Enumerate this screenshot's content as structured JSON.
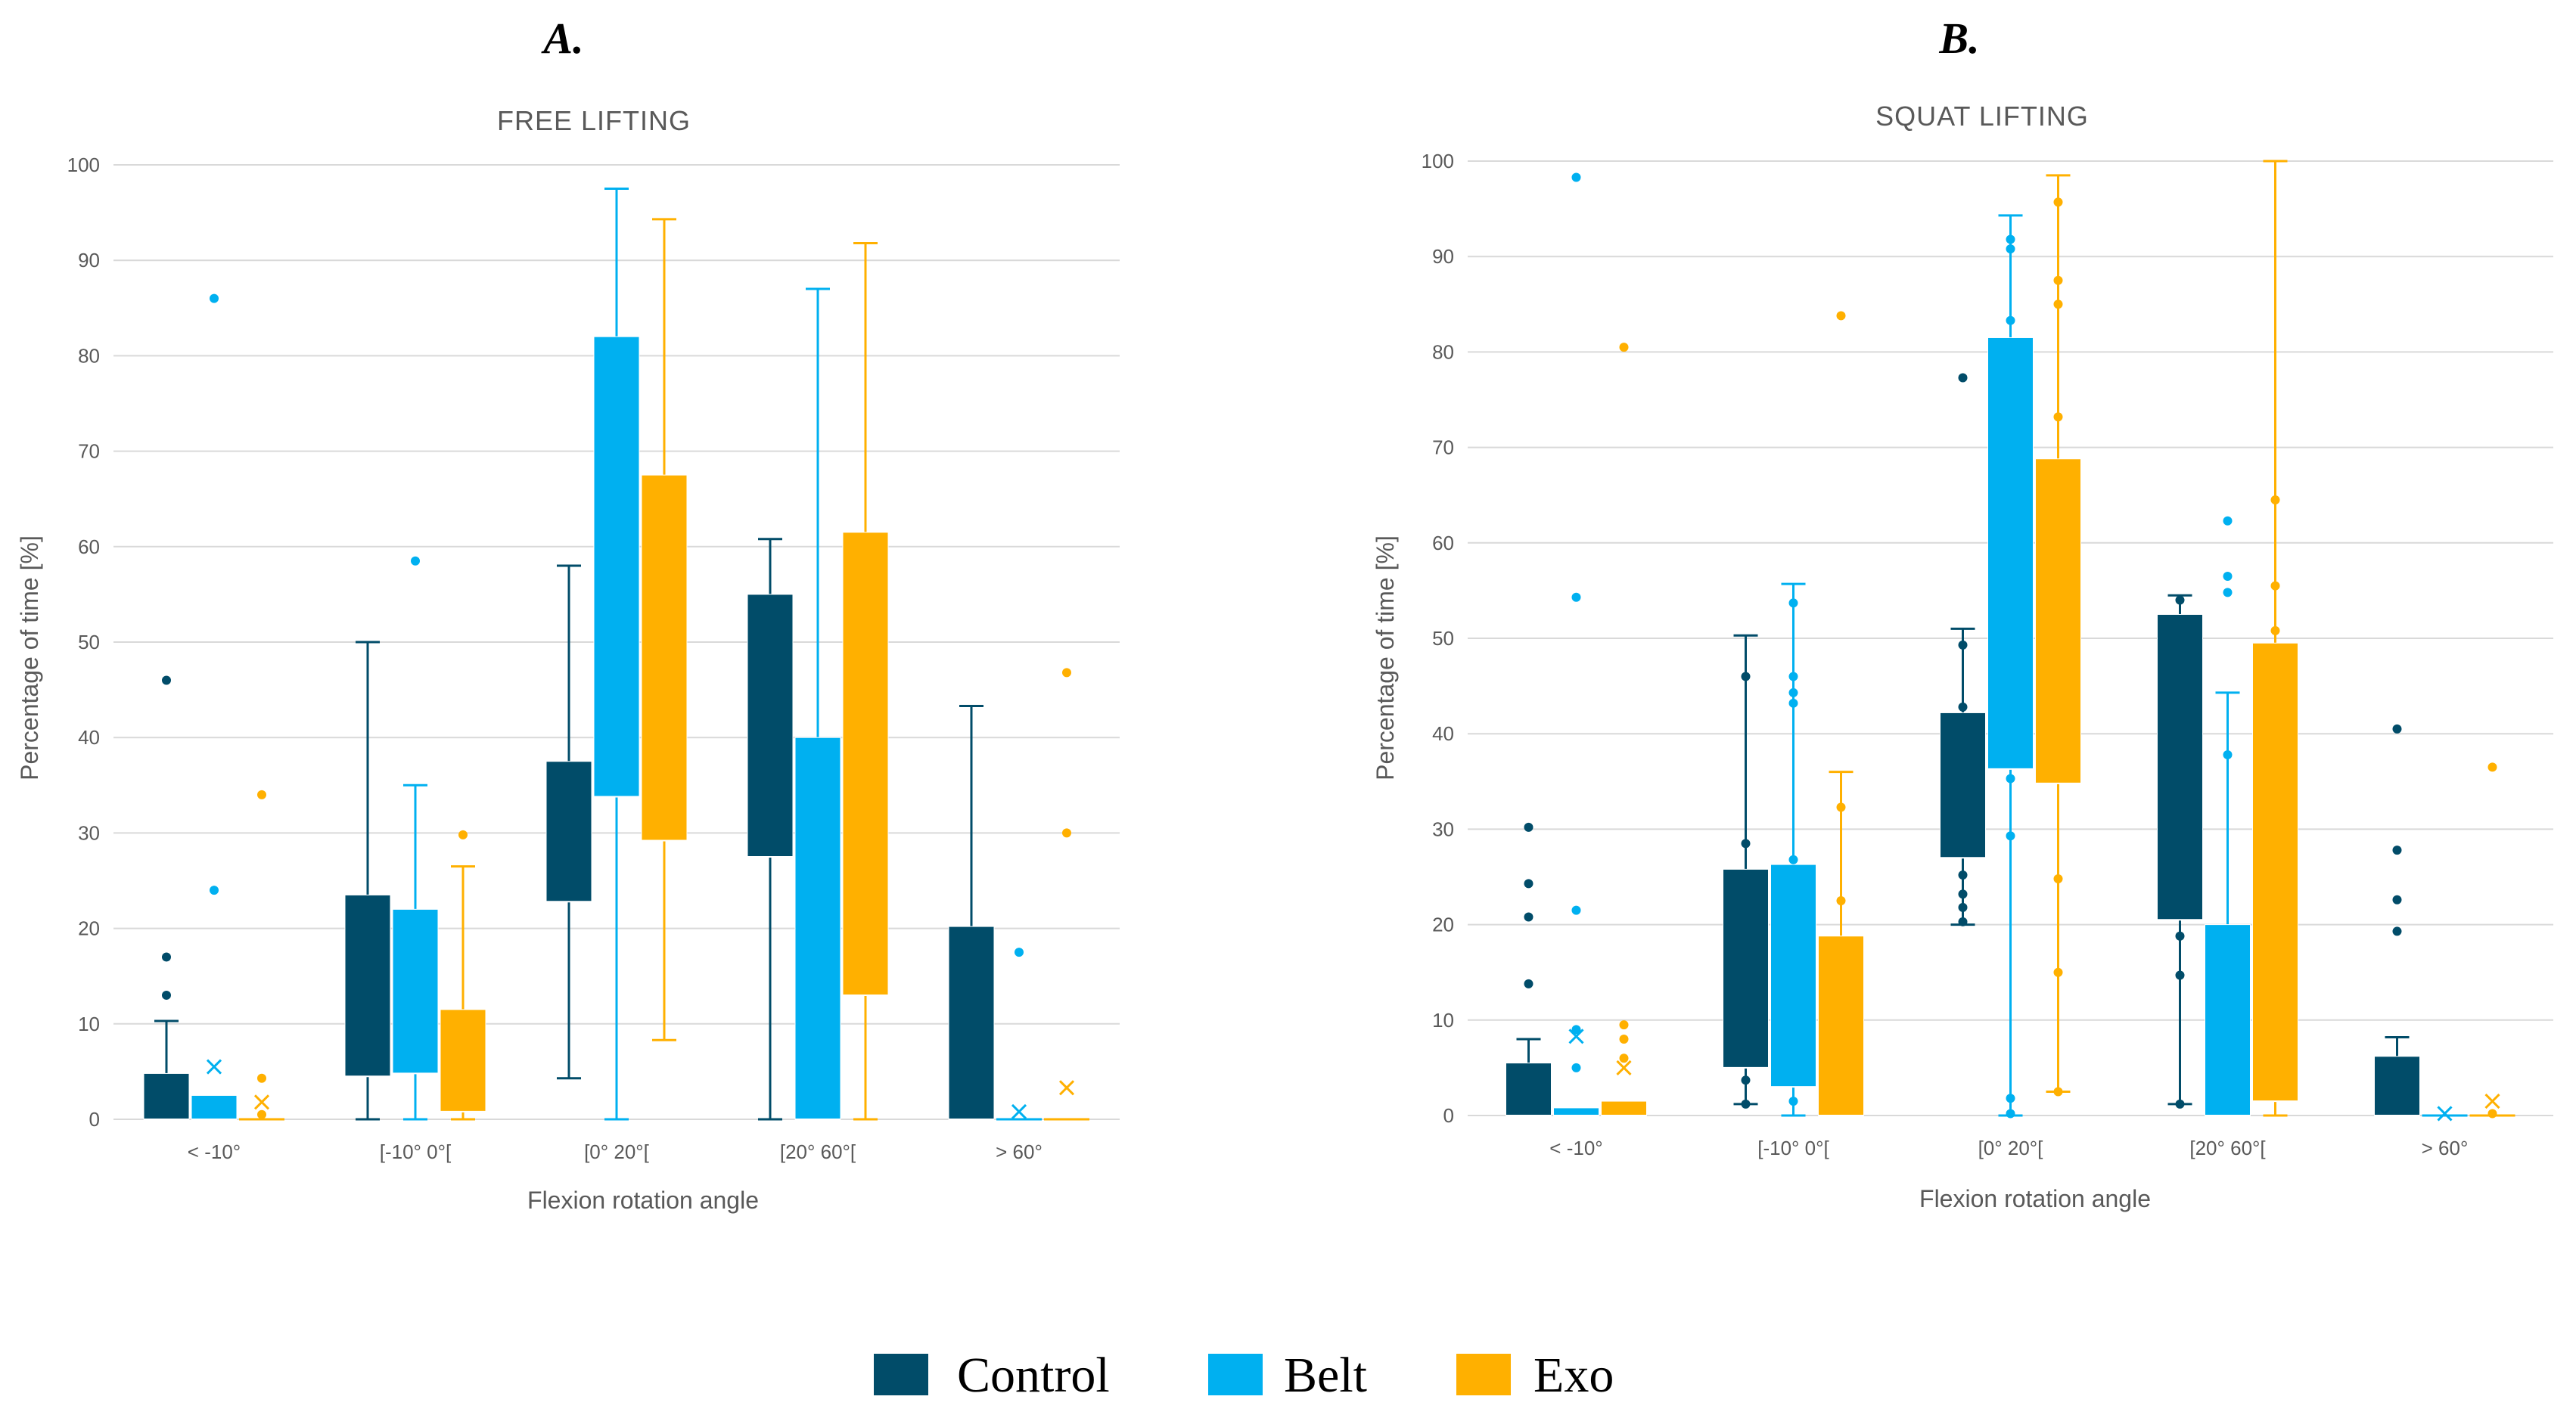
{
  "colors": {
    "Control": "#014c69",
    "Belt": "#00b0f0",
    "Exo": "#ffb000"
  },
  "legend": [
    "Control",
    "Belt",
    "Exo"
  ],
  "chart_data": [
    {
      "type": "boxplot",
      "panel": "A.",
      "title": "FREE LIFTING",
      "xlabel": "Flexion rotation angle",
      "ylabel": "Percentage of time [%]",
      "ylim": [
        0,
        100
      ],
      "yticks": [
        0,
        10,
        20,
        30,
        40,
        50,
        60,
        70,
        80,
        90,
        100
      ],
      "categories": [
        "< -10°",
        "[-10° 0°[",
        "[0° 20°[",
        "[20° 60°[",
        "> 60°"
      ],
      "series": [
        {
          "name": "Control",
          "boxes": [
            {
              "min": 0,
              "q1": 0,
              "median": 0,
              "q3": 4.8,
              "max": 10.3,
              "mean": null,
              "outliers": [
                13,
                17,
                46
              ]
            },
            {
              "min": 0,
              "q1": 4.5,
              "median": 4.5,
              "q3": 23.5,
              "max": 50,
              "mean": null,
              "outliers": []
            },
            {
              "min": 4.3,
              "q1": 22.8,
              "median": 22.8,
              "q3": 37.5,
              "max": 58,
              "mean": null,
              "outliers": []
            },
            {
              "min": 0,
              "q1": 27.5,
              "median": 27.5,
              "q3": 55,
              "max": 60.8,
              "mean": null,
              "outliers": []
            },
            {
              "min": 0,
              "q1": 0,
              "median": 0,
              "q3": 20.2,
              "max": 43.3,
              "mean": null,
              "outliers": []
            }
          ]
        },
        {
          "name": "Belt",
          "boxes": [
            {
              "min": 0,
              "q1": 0,
              "median": 0,
              "q3": 2.5,
              "max": 2.5,
              "mean": 5.5,
              "outliers": [
                24,
                86
              ]
            },
            {
              "min": 0,
              "q1": 4.8,
              "median": 4.8,
              "q3": 22,
              "max": 35,
              "mean": null,
              "outliers": [
                58.5
              ]
            },
            {
              "min": 0,
              "q1": 33.8,
              "median": 33.8,
              "q3": 82,
              "max": 97.5,
              "mean": null,
              "outliers": []
            },
            {
              "min": 0,
              "q1": 0,
              "median": 0,
              "q3": 40,
              "max": 87,
              "mean": null,
              "outliers": []
            },
            {
              "min": 0,
              "q1": 0,
              "median": 0,
              "q3": 0,
              "max": 0,
              "mean": 0.8,
              "outliers": [
                17.5
              ]
            }
          ]
        },
        {
          "name": "Exo",
          "boxes": [
            {
              "min": 0,
              "q1": 0,
              "median": 0,
              "q3": 0,
              "max": 0,
              "mean": 1.8,
              "outliers": [
                0.5,
                4.3,
                34
              ]
            },
            {
              "min": 0,
              "q1": 0.8,
              "median": 0.8,
              "q3": 11.5,
              "max": 26.5,
              "mean": null,
              "outliers": [
                29.8
              ]
            },
            {
              "min": 8.3,
              "q1": 29.2,
              "median": 29.2,
              "q3": 67.5,
              "max": 94.3,
              "mean": null,
              "outliers": []
            },
            {
              "min": 0,
              "q1": 13,
              "median": 13,
              "q3": 61.5,
              "max": 91.8,
              "mean": null,
              "outliers": []
            },
            {
              "min": 0,
              "q1": 0,
              "median": 0,
              "q3": 0,
              "max": 0,
              "mean": 3.3,
              "outliers": [
                30,
                46.8
              ]
            }
          ]
        }
      ]
    },
    {
      "type": "boxplot",
      "panel": "B.",
      "title": "SQUAT LIFTING",
      "xlabel": "Flexion rotation angle",
      "ylabel": "Percentage of time [%]",
      "ylim": [
        0,
        100
      ],
      "yticks": [
        0,
        10,
        20,
        30,
        40,
        50,
        60,
        70,
        80,
        90,
        100
      ],
      "categories": [
        "< -10°",
        "[-10° 0°[",
        "[0° 20°[",
        "[20° 60°[",
        "> 60°"
      ],
      "series": [
        {
          "name": "Control",
          "boxes": [
            {
              "min": 0,
              "q1": 0,
              "median": 0,
              "q3": 5.5,
              "max": 8,
              "mean": null,
              "outliers": [
                13.8,
                20.8,
                24.3,
                30.2
              ]
            },
            {
              "min": 1.2,
              "q1": 5,
              "median": 5,
              "q3": 25.8,
              "max": 50.3,
              "mean": null,
              "outliers": [
                1.2,
                3.7,
                28.5,
                46
              ]
            },
            {
              "min": 20,
              "q1": 27,
              "median": 27,
              "q3": 42.2,
              "max": 51,
              "mean": null,
              "outliers": [
                20.3,
                21.8,
                23.2,
                25.2,
                42.8,
                49.3,
                77.3
              ]
            },
            {
              "min": 1.2,
              "q1": 20.5,
              "median": 20.5,
              "q3": 52.5,
              "max": 54.5,
              "mean": null,
              "outliers": [
                1.2,
                14.7,
                18.8,
                54
              ]
            },
            {
              "min": 0,
              "q1": 0,
              "median": 0,
              "q3": 6.2,
              "max": 8.2,
              "mean": null,
              "outliers": [
                19.3,
                22.6,
                27.8,
                40.5
              ]
            }
          ]
        },
        {
          "name": "Belt",
          "boxes": [
            {
              "min": 0,
              "q1": 0,
              "median": 0,
              "q3": 0.8,
              "max": 0.8,
              "mean": 8.3,
              "outliers": [
                5,
                9,
                21.5,
                54.3,
                98.3
              ]
            },
            {
              "min": 0,
              "q1": 3,
              "median": 3,
              "q3": 26.3,
              "max": 55.7,
              "mean": null,
              "outliers": [
                1.5,
                26.8,
                43.2,
                44.3,
                46,
                53.7
              ]
            },
            {
              "min": 0,
              "q1": 36.3,
              "median": 36.3,
              "q3": 81.5,
              "max": 94.3,
              "mean": null,
              "outliers": [
                0.2,
                1.8,
                29.3,
                35.3,
                83.3,
                90.8,
                91.8
              ]
            },
            {
              "min": 0,
              "q1": 0,
              "median": 0,
              "q3": 20,
              "max": 44.3,
              "mean": null,
              "outliers": [
                19.3,
                37.8,
                54.8,
                56.5,
                62.3
              ]
            },
            {
              "min": 0,
              "q1": 0,
              "median": 0,
              "q3": 0,
              "max": 0,
              "mean": 0.2,
              "outliers": []
            }
          ]
        },
        {
          "name": "Exo",
          "boxes": [
            {
              "min": 0,
              "q1": 0,
              "median": 0,
              "q3": 1.5,
              "max": 1.5,
              "mean": 5,
              "outliers": [
                6,
                8,
                9.5,
                80.5
              ]
            },
            {
              "min": 0,
              "q1": 0,
              "median": 0,
              "q3": 18.8,
              "max": 36,
              "mean": null,
              "outliers": [
                22.5,
                32.3,
                83.8
              ]
            },
            {
              "min": 2.5,
              "q1": 34.8,
              "median": 34.8,
              "q3": 68.8,
              "max": 98.5,
              "mean": null,
              "outliers": [
                2.5,
                15,
                24.8,
                73.2,
                85,
                87.5,
                95.7
              ]
            },
            {
              "min": 0,
              "q1": 1.5,
              "median": 1.5,
              "q3": 49.5,
              "max": 100,
              "mean": null,
              "outliers": [
                50.8,
                55.5,
                64.5
              ]
            },
            {
              "min": 0,
              "q1": 0,
              "median": 0,
              "q3": 0,
              "max": 0,
              "mean": 1.5,
              "outliers": [
                0.2,
                36.5
              ]
            }
          ]
        }
      ]
    }
  ]
}
